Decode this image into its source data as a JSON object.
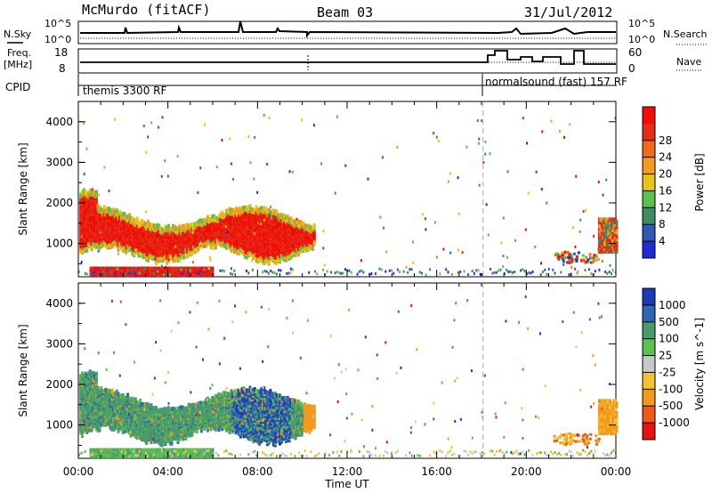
{
  "header": {
    "title": "McMurdo (fitACF)",
    "beam": "Beam 03",
    "date": "31/Jul/2012"
  },
  "sky_panel": {
    "left_label": "N.Sky",
    "right_label": "N.Search",
    "left_ticks": [
      "10^5",
      "10^0"
    ],
    "right_ticks": [
      "10^5",
      "10^0"
    ]
  },
  "freq_panel": {
    "left_label_1": "Freq.",
    "left_label_2": "[MHz]",
    "right_label": "Nave",
    "left_ticks": [
      "18",
      "8"
    ],
    "right_ticks": [
      "60",
      "0"
    ]
  },
  "cpid_panel": {
    "label": "CPID",
    "mode_1": "themis 3300 RF",
    "mode_2": "normalsound (fast) 157 RF"
  },
  "chart_data": [
    {
      "type": "heatmap",
      "ylabel": "Slant Range [km]",
      "yticks": [
        1000,
        2000,
        3000,
        4000
      ],
      "ylim": [
        180,
        4500
      ],
      "xlim_hours": [
        0,
        24
      ],
      "colorbar_label": "Power [dB]",
      "colorbar_ticks": [
        "4",
        "8",
        "12",
        "16",
        "20",
        "24",
        "28"
      ],
      "colorbar_colors": [
        "#1f2cd6",
        "#2e59b9",
        "#3e8c66",
        "#5cbf4e",
        "#e6c41a",
        "#f39b1c",
        "#ef6a1a",
        "#e42c16",
        "#f20b0b"
      ]
    },
    {
      "type": "heatmap",
      "ylabel": "Slant Range [km]",
      "yticks": [
        1000,
        2000,
        3000,
        4000
      ],
      "ylim": [
        180,
        4500
      ],
      "xlim_hours": [
        0,
        24
      ],
      "xlabel": "Time UT",
      "xticks": [
        "00:00",
        "04:00",
        "08:00",
        "12:00",
        "16:00",
        "20:00",
        "00:00"
      ],
      "colorbar_label": "Velocity [m s^-1]",
      "colorbar_ticks": [
        "1000",
        "500",
        "100",
        "25",
        "-25",
        "-100",
        "-500",
        "-1000"
      ],
      "colorbar_colors": [
        "#1e3ab4",
        "#2d66b3",
        "#4b9a6c",
        "#5cbf4e",
        "#c8c8c8",
        "#f1c234",
        "#f29a1d",
        "#ec5a15",
        "#e51414"
      ]
    }
  ]
}
